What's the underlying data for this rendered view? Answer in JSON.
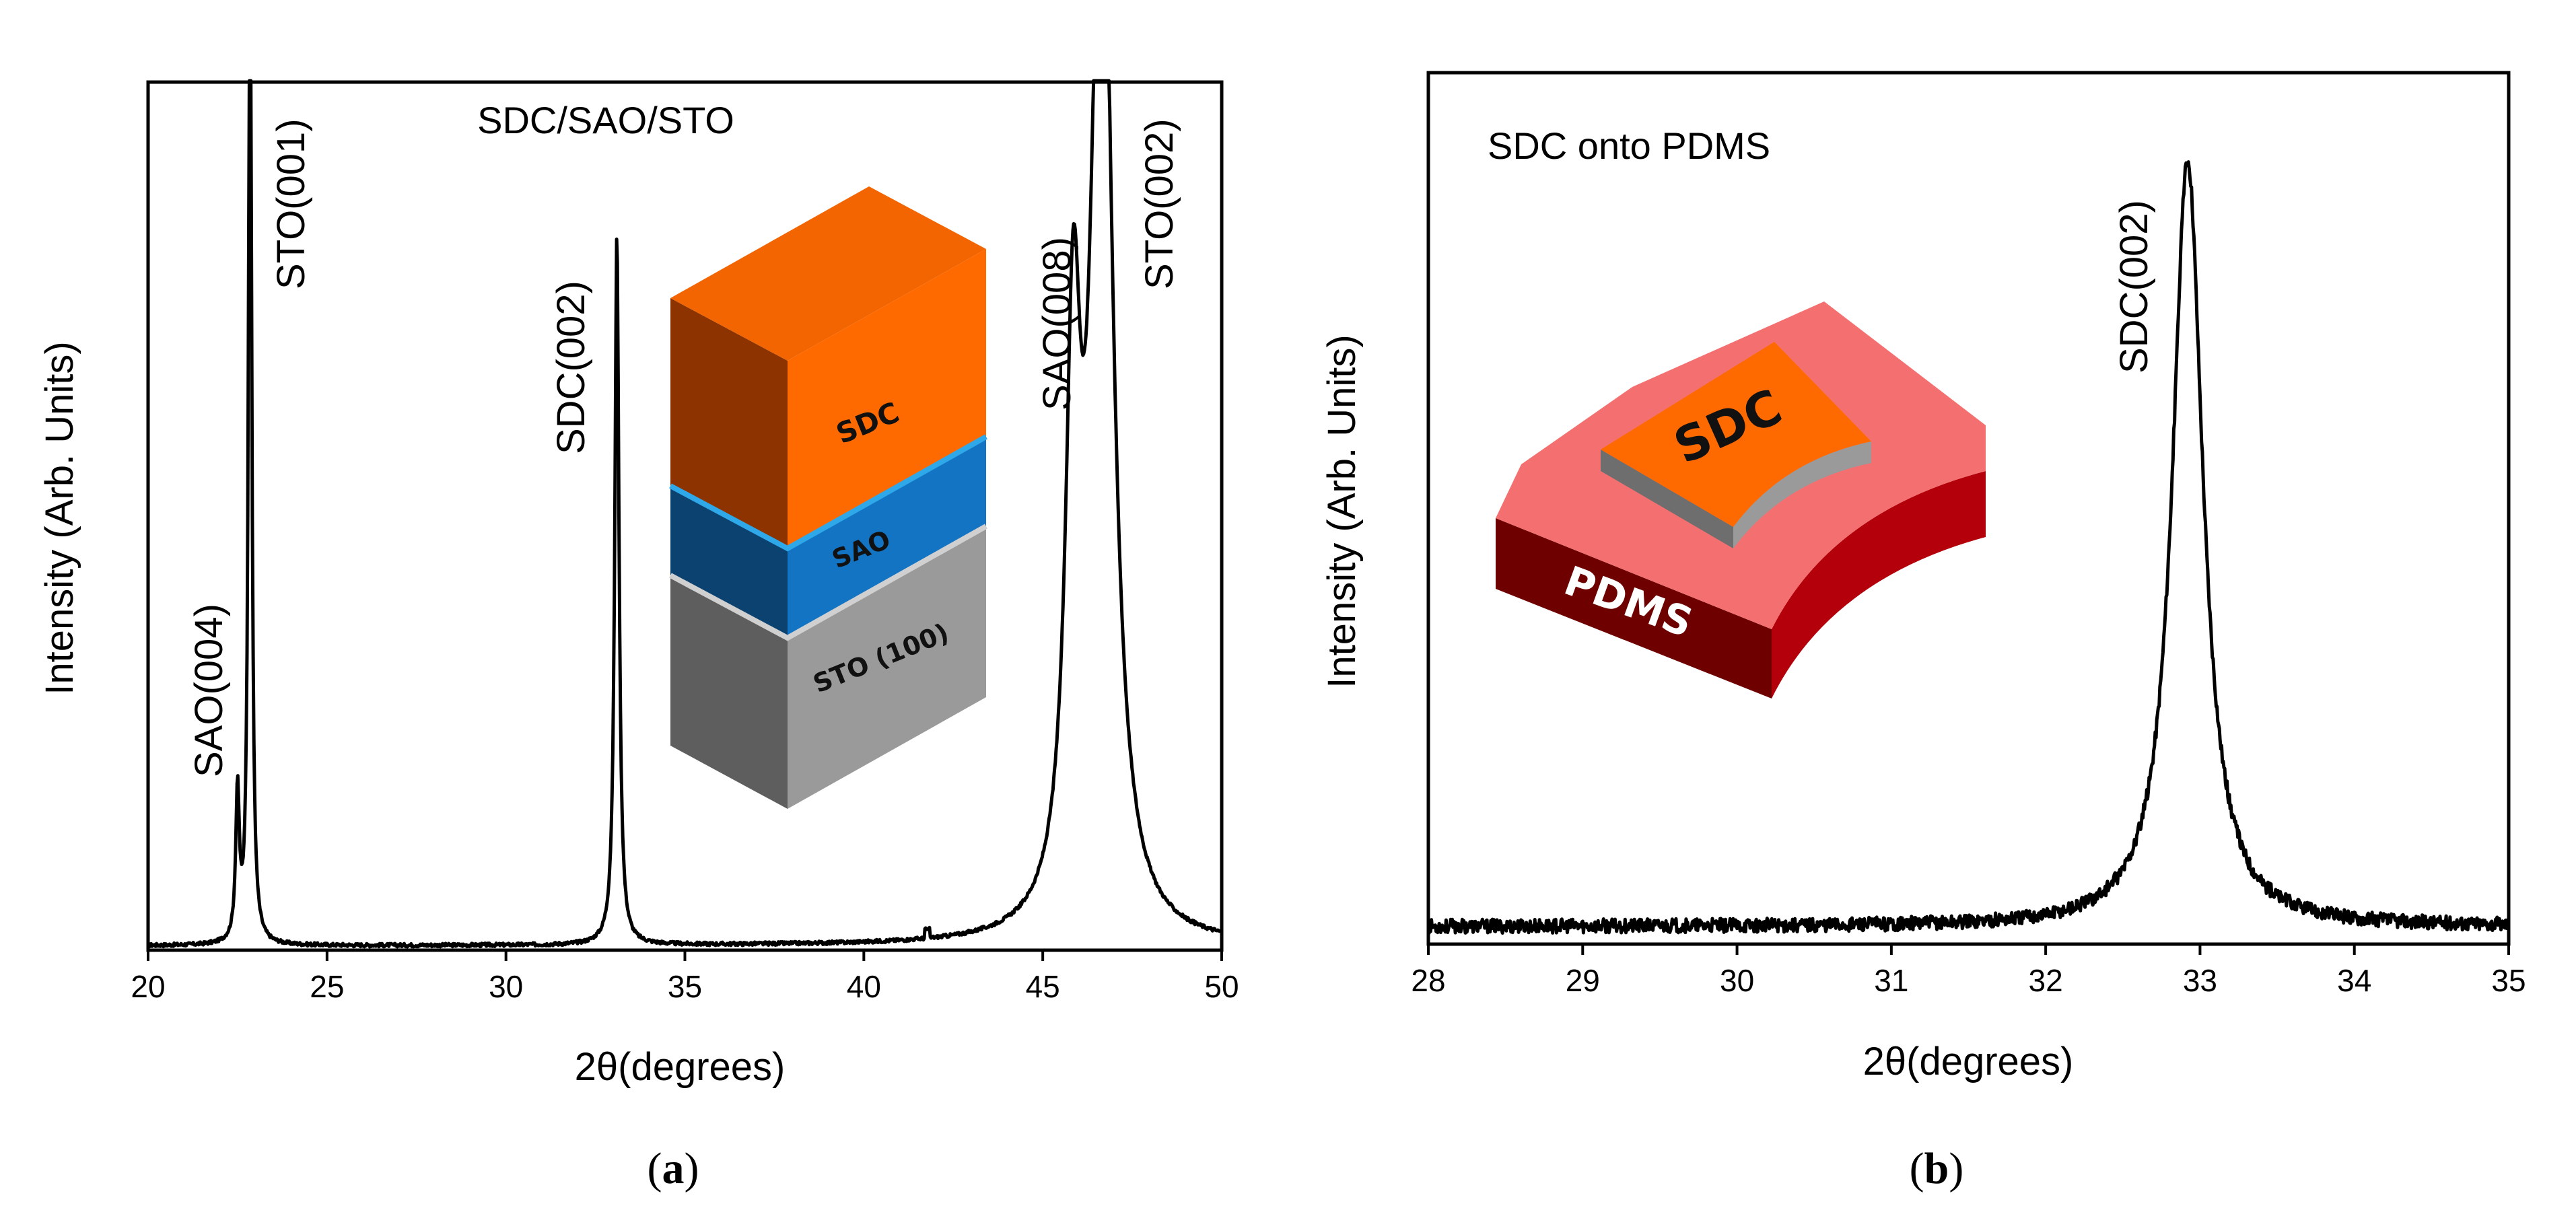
{
  "figure": {
    "panels": [
      {
        "id": "a",
        "panel_label": "(a)",
        "bold_letter": "a",
        "inset": {
          "title": "SDC/SAO/STO",
          "layers": [
            "SDC",
            "SAO",
            "STO (100)"
          ],
          "colors": {
            "sdc_front": "#FF6A00",
            "sdc_top": "#F26500",
            "sdc_side": "#8C3300",
            "sao_front": "#1474C4",
            "sao_side": "#0C4270",
            "sto_front": "#9A9A9A",
            "sto_side": "#5E5E5E",
            "border": "#2EA8E8"
          }
        }
      },
      {
        "id": "b",
        "panel_label": "(b)",
        "bold_letter": "b",
        "inset": {
          "title": "SDC onto PDMS",
          "layers": [
            "SDC",
            "PDMS"
          ],
          "colors": {
            "pdms_top": "#F47070",
            "pdms_side": "#B3000A",
            "pdms_dark": "#6E0000",
            "sdc_top": "#FF6A00",
            "sdc_side": "#8F8F8F"
          }
        }
      }
    ]
  },
  "chart_data": [
    {
      "type": "line",
      "title": "SDC/SAO/STO",
      "xlabel": "2θ(degrees)",
      "ylabel": "Intensity (Arb. Units)",
      "xlim": [
        20,
        50
      ],
      "ylim": [
        0,
        1.0
      ],
      "xticks": [
        20,
        25,
        30,
        35,
        40,
        45,
        50
      ],
      "baseline": 0.005,
      "noise": 0.002,
      "peaks": [
        {
          "label": "SAO(004)",
          "center": 22.5,
          "height": 0.17,
          "width": 0.06
        },
        {
          "label": "STO(001)",
          "center": 22.85,
          "height": 1.3,
          "width": 0.05
        },
        {
          "label": "SDC(002)",
          "center": 33.1,
          "height": 0.82,
          "width": 0.07
        },
        {
          "label": "SAO(008)",
          "center": 45.85,
          "height": 0.62,
          "width": 0.25
        },
        {
          "label": "STO(002)",
          "center": 46.65,
          "height": 1.3,
          "width": 0.35
        }
      ],
      "series": [
        {
          "name": "SDC/SAO/STO",
          "color": "#000000"
        }
      ]
    },
    {
      "type": "line",
      "title": "SDC onto PDMS",
      "xlabel": "2θ(degrees)",
      "ylabel": "Intensity (Arb. Units)",
      "xlim": [
        28,
        35
      ],
      "ylim": [
        0,
        1.0
      ],
      "xticks": [
        28,
        29,
        30,
        31,
        32,
        33,
        34,
        35
      ],
      "baseline": 0.02,
      "noise": 0.008,
      "peaks": [
        {
          "label": "SDC(002)",
          "center": 32.92,
          "height": 0.88,
          "width": 0.12
        }
      ],
      "series": [
        {
          "name": "SDC onto PDMS",
          "color": "#000000"
        }
      ]
    }
  ]
}
